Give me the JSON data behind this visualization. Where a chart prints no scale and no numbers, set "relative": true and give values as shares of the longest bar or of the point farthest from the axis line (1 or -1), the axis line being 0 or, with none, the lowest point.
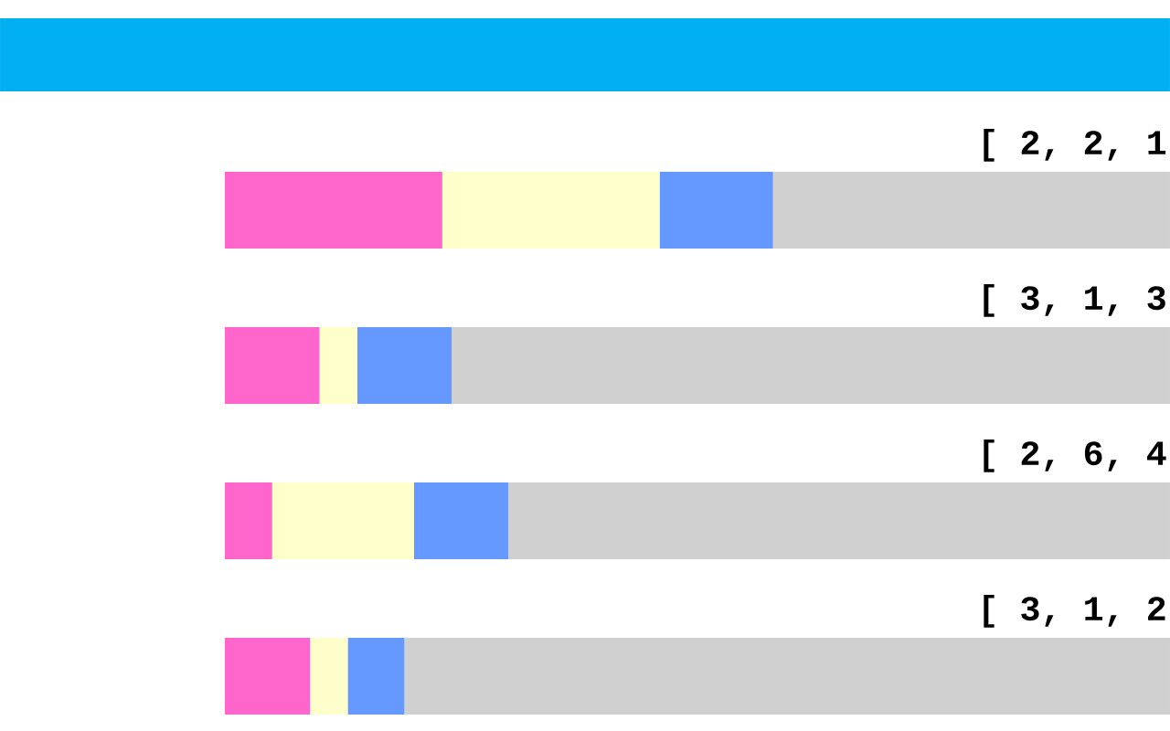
{
  "chart_data": {
    "type": "bar",
    "orientation": "horizontal",
    "stacked": true,
    "relative": true,
    "categories": [
      "[ 2, 2, 1",
      "[ 3, 1, 3",
      "[ 2, 6, 4",
      "[ 3, 1, 2"
    ],
    "series": [
      {
        "color": "#ff66cc",
        "values": [
          0.23,
          0.1,
          0.05,
          0.09
        ]
      },
      {
        "color": "#ffffcc",
        "values": [
          0.23,
          0.04,
          0.15,
          0.04
        ]
      },
      {
        "color": "#6699ff",
        "values": [
          0.12,
          0.1,
          0.1,
          0.06
        ]
      },
      {
        "color": "#d0d0d0",
        "values": [
          0.42,
          0.76,
          0.7,
          0.81
        ]
      }
    ]
  }
}
